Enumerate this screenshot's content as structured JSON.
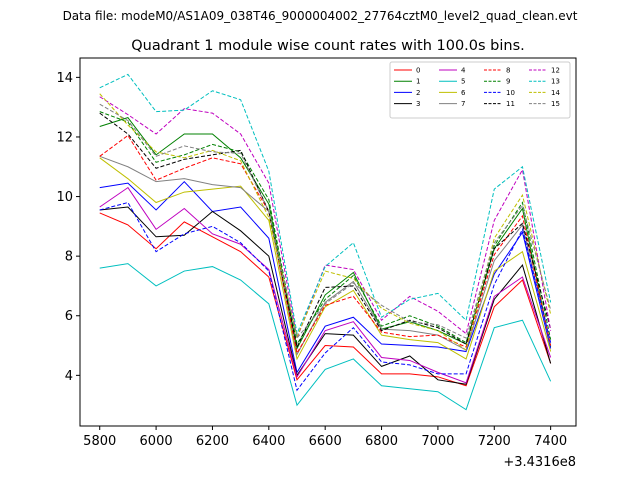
{
  "chart_data": {
    "type": "line",
    "suptitle": "Data file: modeM0/AS1A09_038T46_9000004002_27764cztM0_level2_quad_clean.evt",
    "title": "Quadrant 1 module wise count rates with 100.0s bins.",
    "xlabel": "",
    "ylabel": "",
    "x_offset_label": "+3.4316e8",
    "x": [
      5800,
      5900,
      6000,
      6100,
      6200,
      6300,
      6400,
      6500,
      6600,
      6700,
      6800,
      6900,
      7000,
      7100,
      7200,
      7300,
      7400
    ],
    "xlim": [
      5730,
      7490
    ],
    "ylim": [
      2.3,
      14.65
    ],
    "xticks": [
      5800,
      6000,
      6200,
      6400,
      6600,
      6800,
      7000,
      7200,
      7400
    ],
    "xtick_labels": [
      "5800",
      "6000",
      "6200",
      "6400",
      "6600",
      "6800",
      "7000",
      "7200",
      "7400"
    ],
    "yticks": [
      4,
      6,
      8,
      10,
      12,
      14
    ],
    "ytick_labels": [
      "4",
      "6",
      "8",
      "10",
      "12",
      "14"
    ],
    "legend_position": "upper-right",
    "legend_columns": 4,
    "series": [
      {
        "name": "0",
        "color": "#ff0000",
        "dash": "solid",
        "values": [
          9.45,
          9.05,
          8.25,
          9.15,
          8.65,
          8.15,
          7.3,
          3.85,
          5.0,
          4.95,
          4.05,
          4.05,
          3.95,
          3.65,
          6.3,
          7.2,
          4.4
        ]
      },
      {
        "name": "1",
        "color": "#008000",
        "dash": "solid",
        "values": [
          12.35,
          12.65,
          11.4,
          12.1,
          12.1,
          11.3,
          9.75,
          4.9,
          6.7,
          7.45,
          5.55,
          5.8,
          5.5,
          5.05,
          8.25,
          9.6,
          4.95
        ]
      },
      {
        "name": "2",
        "color": "#0000ff",
        "dash": "solid",
        "values": [
          10.3,
          10.45,
          9.55,
          10.5,
          9.5,
          9.65,
          8.6,
          4.1,
          5.65,
          5.95,
          5.05,
          5.0,
          4.95,
          4.8,
          7.4,
          8.8,
          4.9
        ]
      },
      {
        "name": "3",
        "color": "#000000",
        "dash": "solid",
        "values": [
          9.55,
          9.65,
          8.65,
          8.7,
          9.5,
          8.85,
          8.0,
          4.0,
          5.4,
          5.35,
          4.3,
          4.65,
          3.85,
          3.7,
          6.55,
          7.7,
          4.4
        ]
      },
      {
        "name": "4",
        "color": "#bf00bf",
        "dash": "solid",
        "values": [
          9.65,
          10.3,
          8.9,
          9.6,
          8.75,
          8.4,
          7.55,
          3.95,
          5.5,
          5.8,
          4.6,
          4.5,
          4.1,
          3.75,
          6.65,
          7.3,
          4.6
        ]
      },
      {
        "name": "5",
        "color": "#00bfbf",
        "dash": "solid",
        "values": [
          7.6,
          7.75,
          7.0,
          7.5,
          7.65,
          7.2,
          6.4,
          3.0,
          4.2,
          4.55,
          3.65,
          3.55,
          3.45,
          2.85,
          5.6,
          5.85,
          3.8
        ]
      },
      {
        "name": "6",
        "color": "#bfbf00",
        "dash": "solid",
        "values": [
          11.3,
          10.6,
          9.8,
          10.15,
          10.25,
          10.35,
          9.2,
          4.55,
          6.3,
          6.85,
          5.35,
          5.2,
          5.1,
          4.55,
          7.5,
          8.15,
          4.8
        ]
      },
      {
        "name": "7",
        "color": "#808080",
        "dash": "solid",
        "values": [
          11.35,
          11.0,
          10.5,
          10.6,
          10.4,
          10.3,
          9.5,
          4.7,
          6.45,
          7.15,
          5.55,
          5.5,
          5.35,
          4.85,
          7.85,
          9.05,
          5.0
        ]
      },
      {
        "name": "8",
        "color": "#ff0000",
        "dash": "dashed",
        "values": [
          11.35,
          12.05,
          10.55,
          10.95,
          11.3,
          11.1,
          9.5,
          4.75,
          6.35,
          6.65,
          5.45,
          5.3,
          5.35,
          4.95,
          8.05,
          9.35,
          5.0
        ]
      },
      {
        "name": "9",
        "color": "#008000",
        "dash": "dashed",
        "values": [
          12.85,
          12.5,
          11.15,
          11.4,
          11.75,
          11.5,
          9.9,
          5.05,
          6.55,
          7.35,
          5.65,
          6.0,
          5.65,
          5.1,
          8.35,
          9.8,
          5.2
        ]
      },
      {
        "name": "10",
        "color": "#0000ff",
        "dash": "dashed",
        "values": [
          9.55,
          9.8,
          8.15,
          8.75,
          9.0,
          8.45,
          7.5,
          3.5,
          4.75,
          5.6,
          4.45,
          4.35,
          4.05,
          4.05,
          7.05,
          8.9,
          5.1
        ]
      },
      {
        "name": "11",
        "color": "#000000",
        "dash": "dashed",
        "values": [
          12.8,
          12.1,
          10.95,
          11.25,
          11.4,
          11.55,
          9.5,
          4.95,
          6.95,
          7.0,
          5.5,
          5.85,
          5.6,
          5.05,
          8.25,
          9.1,
          5.55
        ]
      },
      {
        "name": "12",
        "color": "#bf00bf",
        "dash": "dashed",
        "values": [
          13.35,
          12.75,
          12.1,
          12.95,
          12.8,
          12.1,
          10.45,
          5.25,
          7.7,
          7.55,
          5.85,
          6.65,
          6.15,
          5.4,
          9.2,
          10.9,
          5.5
        ]
      },
      {
        "name": "13",
        "color": "#00bfbf",
        "dash": "dashed",
        "values": [
          13.65,
          14.1,
          12.85,
          12.9,
          13.55,
          13.25,
          10.85,
          5.4,
          7.65,
          8.45,
          5.95,
          6.55,
          6.75,
          5.85,
          10.25,
          11.0,
          6.45
        ]
      },
      {
        "name": "14",
        "color": "#bfbf00",
        "dash": "dashed",
        "values": [
          13.45,
          12.4,
          11.5,
          11.3,
          11.55,
          11.2,
          9.3,
          5.3,
          7.5,
          7.25,
          6.25,
          5.75,
          5.5,
          4.85,
          8.6,
          10.05,
          6.05
        ]
      },
      {
        "name": "15",
        "color": "#808080",
        "dash": "dashed",
        "values": [
          13.1,
          12.55,
          11.35,
          11.7,
          11.5,
          11.45,
          9.5,
          5.25,
          6.4,
          7.1,
          6.35,
          5.8,
          5.7,
          5.25,
          8.45,
          9.7,
          6.2
        ]
      }
    ]
  }
}
